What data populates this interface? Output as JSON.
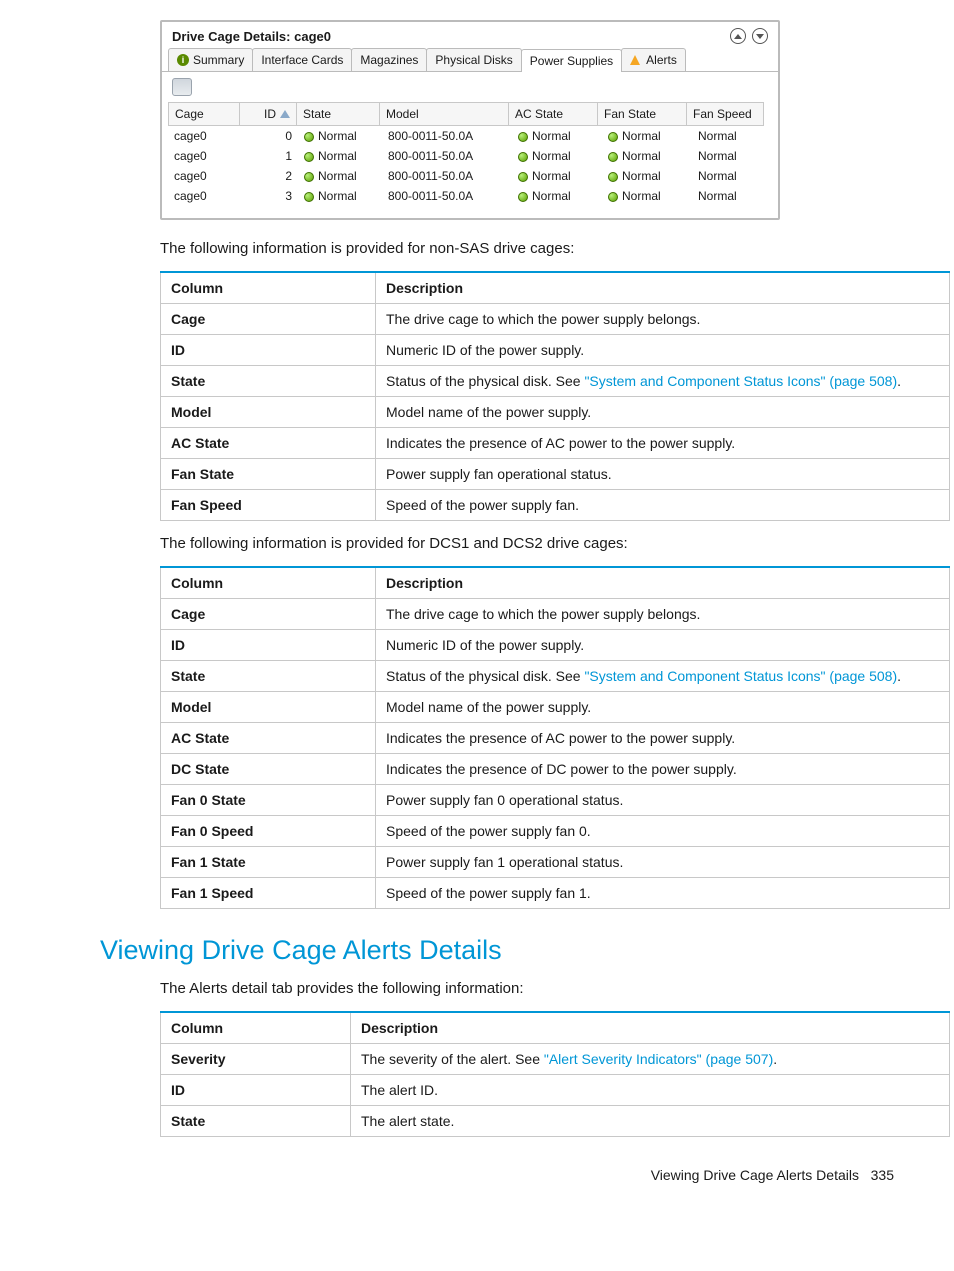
{
  "panel": {
    "title": "Drive Cage Details: cage0",
    "tabs": [
      "Summary",
      "Interface Cards",
      "Magazines",
      "Physical Disks",
      "Power Supplies",
      "Alerts"
    ],
    "active_tab": "Power Supplies",
    "columns": [
      "Cage",
      "ID",
      "State",
      "Model",
      "AC State",
      "Fan State",
      "Fan Speed"
    ],
    "rows": [
      {
        "cage": "cage0",
        "id": "0",
        "state": "Normal",
        "model": "800-0011-50.0A",
        "ac": "Normal",
        "fan": "Normal",
        "fspeed": "Normal"
      },
      {
        "cage": "cage0",
        "id": "1",
        "state": "Normal",
        "model": "800-0011-50.0A",
        "ac": "Normal",
        "fan": "Normal",
        "fspeed": "Normal"
      },
      {
        "cage": "cage0",
        "id": "2",
        "state": "Normal",
        "model": "800-0011-50.0A",
        "ac": "Normal",
        "fan": "Normal",
        "fspeed": "Normal"
      },
      {
        "cage": "cage0",
        "id": "3",
        "state": "Normal",
        "model": "800-0011-50.0A",
        "ac": "Normal",
        "fan": "Normal",
        "fspeed": "Normal"
      }
    ]
  },
  "para1": "The following information is provided for non-SAS drive cages:",
  "table1": {
    "head": [
      "Column",
      "Description"
    ],
    "rows": [
      [
        "Cage",
        "The drive cage to which the power supply belongs."
      ],
      [
        "ID",
        "Numeric ID of the power supply."
      ],
      [
        "State",
        "Status of the physical disk. See "
      ],
      [
        "Model",
        "Model name of the power supply."
      ],
      [
        "AC State",
        "Indicates the presence of AC power to the power supply."
      ],
      [
        "Fan State",
        "Power supply fan operational status."
      ],
      [
        "Fan Speed",
        "Speed of the power supply fan."
      ]
    ],
    "link_row": 2,
    "link_text": "\"System and Component Status Icons\" (page 508)",
    "link_after": "."
  },
  "para2": "The following information is provided for DCS1 and DCS2 drive cages:",
  "table2": {
    "head": [
      "Column",
      "Description"
    ],
    "rows": [
      [
        "Cage",
        "The drive cage to which the power supply belongs."
      ],
      [
        "ID",
        "Numeric ID of the power supply."
      ],
      [
        "State",
        "Status of the physical disk. See "
      ],
      [
        "Model",
        "Model name of the power supply."
      ],
      [
        "AC State",
        "Indicates the presence of AC power to the power supply."
      ],
      [
        "DC State",
        "Indicates the presence of DC power to the power supply."
      ],
      [
        "Fan 0 State",
        "Power supply fan 0 operational status."
      ],
      [
        "Fan 0 Speed",
        "Speed of the power supply fan 0."
      ],
      [
        "Fan 1 State",
        "Power supply fan 1 operational status."
      ],
      [
        "Fan 1 Speed",
        "Speed of the power supply fan 1."
      ]
    ],
    "link_row": 2,
    "link_text": "\"System and Component Status Icons\" (page 508)",
    "link_after": "."
  },
  "section_heading": "Viewing Drive Cage Alerts Details",
  "para3": "The Alerts detail tab provides the following information:",
  "table3": {
    "head": [
      "Column",
      "Description"
    ],
    "rows": [
      [
        "Severity",
        "The severity of the alert. See "
      ],
      [
        "ID",
        "The alert ID."
      ],
      [
        "State",
        "The alert state."
      ]
    ],
    "link_row": 0,
    "link_text": "\"Alert Severity Indicators\" (page 507)",
    "link_after": "."
  },
  "footer": "Viewing Drive Cage Alerts Details",
  "page_num": "335"
}
